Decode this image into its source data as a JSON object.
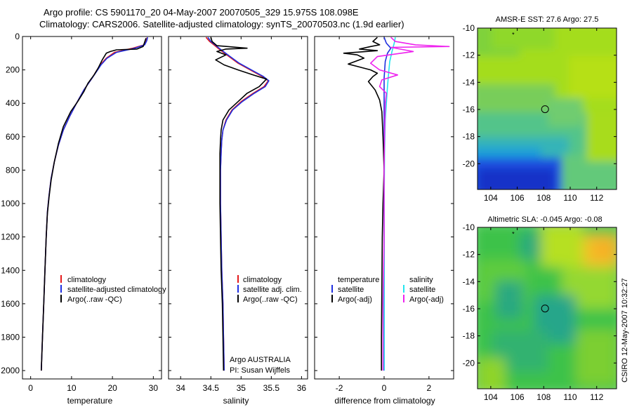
{
  "header": {
    "line1": "Argo profile: CS 5901170_20 04-May-2007 20070505_329 15.975S 108.098E",
    "line2": "Climatology: CARS2006. Satellite-adjusted climatology: synTS_20070503.nc (1.9d earlier)"
  },
  "side_label": "CSIRO 12-May-2007 10:32:27",
  "colors": {
    "climatology": "#e41a1c",
    "satellite": "#1f2fe0",
    "argo": "#000000",
    "salinity_satellite": "#22e5ee",
    "salinity_argo": "#ee22ee"
  },
  "chart_data": [
    {
      "id": "temperature",
      "type": "line",
      "xlabel": "temperature",
      "xlim": [
        -2,
        32
      ],
      "xticks": [
        0,
        10,
        20,
        30
      ],
      "ylim": [
        2050,
        0
      ],
      "yticks": [
        0,
        200,
        400,
        600,
        800,
        1000,
        1200,
        1400,
        1600,
        1800,
        2000
      ],
      "legend": {
        "placement": "lower-right",
        "entries": [
          {
            "label": "climatology",
            "color": "#e41a1c"
          },
          {
            "label": "satellite-adjusted climatology",
            "color": "#1f2fe0"
          },
          {
            "label": "Argo(..raw -QC)",
            "color": "#000000"
          }
        ]
      },
      "series": [
        {
          "name": "climatology",
          "color": "#e41a1c",
          "points": [
            [
              28.5,
              5
            ],
            [
              28.3,
              25
            ],
            [
              27.8,
              50
            ],
            [
              25,
              70
            ],
            [
              20.5,
              95
            ],
            [
              18.5,
              130
            ],
            [
              17,
              170
            ],
            [
              15,
              250
            ],
            [
              13,
              320
            ],
            [
              11.2,
              400
            ],
            [
              9.5,
              480
            ],
            [
              8,
              560
            ],
            [
              6.8,
              650
            ],
            [
              5.8,
              750
            ],
            [
              5,
              850
            ],
            [
              4.5,
              950
            ],
            [
              4.1,
              1050
            ],
            [
              3.8,
              1200
            ],
            [
              3.5,
              1400
            ],
            [
              3.2,
              1600
            ],
            [
              2.9,
              1800
            ],
            [
              2.6,
              2000
            ]
          ]
        },
        {
          "name": "satellite-adjusted climatology",
          "color": "#1f2fe0",
          "points": [
            [
              28.6,
              5
            ],
            [
              28.4,
              25
            ],
            [
              27.9,
              50
            ],
            [
              25.5,
              70
            ],
            [
              21,
              95
            ],
            [
              18.7,
              130
            ],
            [
              17.2,
              170
            ],
            [
              15,
              250
            ],
            [
              13,
              320
            ],
            [
              11.2,
              400
            ],
            [
              9.5,
              480
            ],
            [
              8,
              560
            ],
            [
              6.8,
              650
            ],
            [
              5.8,
              750
            ],
            [
              5,
              850
            ],
            [
              4.5,
              950
            ],
            [
              4.1,
              1050
            ],
            [
              3.8,
              1200
            ],
            [
              3.5,
              1400
            ],
            [
              3.2,
              1600
            ],
            [
              2.9,
              1800
            ],
            [
              2.6,
              2000
            ]
          ]
        },
        {
          "name": "Argo(..raw -QC)",
          "color": "#000000",
          "points": [
            [
              28.2,
              10
            ],
            [
              27.8,
              40
            ],
            [
              27.5,
              60
            ],
            [
              26,
              75
            ],
            [
              21,
              80
            ],
            [
              19.5,
              90
            ],
            [
              18.5,
              100
            ],
            [
              17.5,
              140
            ],
            [
              16.5,
              190
            ],
            [
              15.5,
              230
            ],
            [
              14,
              280
            ],
            [
              13,
              330
            ],
            [
              11.5,
              390
            ],
            [
              9.8,
              450
            ],
            [
              8,
              540
            ],
            [
              6.8,
              640
            ],
            [
              5.8,
              750
            ],
            [
              5,
              860
            ],
            [
              4.5,
              960
            ],
            [
              4.1,
              1060
            ],
            [
              3.8,
              1200
            ],
            [
              3.5,
              1400
            ],
            [
              3.2,
              1600
            ],
            [
              2.9,
              1800
            ],
            [
              2.6,
              2000
            ]
          ]
        }
      ]
    },
    {
      "id": "salinity",
      "type": "line",
      "xlabel": "salinity",
      "xlim": [
        33.8,
        36.1
      ],
      "xticks": [
        34,
        34.5,
        35,
        35.5,
        36
      ],
      "ylim": [
        2050,
        0
      ],
      "legend": {
        "placement": "lower-right",
        "entries": [
          {
            "label": "climatology",
            "color": "#e41a1c"
          },
          {
            "label": "satellite adj. clim.",
            "color": "#1f2fe0"
          },
          {
            "label": "Argo(..raw -QC)",
            "color": "#000000"
          }
        ]
      },
      "annotation": {
        "line1": "Argo AUSTRALIA",
        "line2": "PI: Susan Wijffels"
      },
      "series": [
        {
          "name": "climatology",
          "color": "#e41a1c",
          "points": [
            [
              34.42,
              5
            ],
            [
              34.48,
              30
            ],
            [
              34.55,
              50
            ],
            [
              34.65,
              80
            ],
            [
              34.8,
              120
            ],
            [
              34.95,
              160
            ],
            [
              35.15,
              200
            ],
            [
              35.35,
              240
            ],
            [
              35.45,
              265
            ],
            [
              35.38,
              300
            ],
            [
              35.2,
              340
            ],
            [
              35.0,
              390
            ],
            [
              34.85,
              440
            ],
            [
              34.75,
              500
            ],
            [
              34.7,
              560
            ],
            [
              34.68,
              620
            ],
            [
              34.67,
              700
            ],
            [
              34.66,
              800
            ],
            [
              34.66,
              1000
            ],
            [
              34.67,
              1200
            ],
            [
              34.68,
              1400
            ],
            [
              34.7,
              1600
            ],
            [
              34.71,
              1800
            ],
            [
              34.72,
              2000
            ]
          ]
        },
        {
          "name": "satellite adj. clim.",
          "color": "#1f2fe0",
          "points": [
            [
              34.45,
              5
            ],
            [
              34.5,
              30
            ],
            [
              34.57,
              50
            ],
            [
              34.67,
              80
            ],
            [
              34.82,
              120
            ],
            [
              34.97,
              160
            ],
            [
              35.17,
              200
            ],
            [
              35.37,
              240
            ],
            [
              35.46,
              265
            ],
            [
              35.4,
              300
            ],
            [
              35.22,
              340
            ],
            [
              35.02,
              390
            ],
            [
              34.86,
              440
            ],
            [
              34.76,
              500
            ],
            [
              34.7,
              560
            ],
            [
              34.68,
              620
            ],
            [
              34.67,
              700
            ],
            [
              34.66,
              800
            ],
            [
              34.66,
              1000
            ],
            [
              34.67,
              1200
            ],
            [
              34.68,
              1400
            ],
            [
              34.7,
              1600
            ],
            [
              34.71,
              1800
            ],
            [
              34.72,
              2000
            ]
          ]
        },
        {
          "name": "Argo(..raw -QC)",
          "color": "#000000",
          "points": [
            [
              34.5,
              5
            ],
            [
              34.52,
              30
            ],
            [
              34.6,
              55
            ],
            [
              35.1,
              70
            ],
            [
              34.75,
              75
            ],
            [
              34.6,
              90
            ],
            [
              34.75,
              110
            ],
            [
              34.58,
              140
            ],
            [
              34.72,
              170
            ],
            [
              34.95,
              200
            ],
            [
              35.2,
              230
            ],
            [
              35.42,
              255
            ],
            [
              35.3,
              300
            ],
            [
              35.1,
              340
            ],
            [
              34.95,
              390
            ],
            [
              34.8,
              440
            ],
            [
              34.7,
              500
            ],
            [
              34.67,
              560
            ],
            [
              34.66,
              620
            ],
            [
              34.65,
              700
            ],
            [
              34.65,
              800
            ],
            [
              34.65,
              1000
            ],
            [
              34.66,
              1200
            ],
            [
              34.67,
              1400
            ],
            [
              34.69,
              1600
            ],
            [
              34.7,
              1800
            ],
            [
              34.71,
              2000
            ]
          ]
        }
      ]
    },
    {
      "id": "difference",
      "type": "line",
      "xlabel": "difference from climatology",
      "xlim": [
        -3.1,
        3.1
      ],
      "xticks": [
        -2,
        0,
        2
      ],
      "ylim": [
        2050,
        0
      ],
      "legend": {
        "placement": "lower-right",
        "temperature_heading": "temperature",
        "salinity_heading": "salinity",
        "entries": [
          {
            "label": "satellite",
            "color": "#1f2fe0",
            "group": "temperature"
          },
          {
            "label": "Argo(-adj)",
            "color": "#000000",
            "group": "temperature"
          },
          {
            "label": "satellite",
            "color": "#22e5ee",
            "group": "salinity"
          },
          {
            "label": "Argo(-adj)",
            "color": "#ee22ee",
            "group": "salinity"
          }
        ]
      },
      "series": [
        {
          "name": "temperature satellite",
          "color": "#1f2fe0",
          "points": [
            [
              0,
              5
            ],
            [
              0.1,
              40
            ],
            [
              0.3,
              70
            ],
            [
              0.15,
              100
            ],
            [
              0.05,
              150
            ],
            [
              0,
              250
            ],
            [
              0,
              400
            ],
            [
              0,
              600
            ],
            [
              0,
              1000
            ],
            [
              0,
              1500
            ],
            [
              0,
              2000
            ]
          ]
        },
        {
          "name": "temperature Argo(-adj)",
          "color": "#000000",
          "points": [
            [
              -0.3,
              5
            ],
            [
              -0.5,
              30
            ],
            [
              -0.2,
              50
            ],
            [
              -0.6,
              60
            ],
            [
              -1.1,
              75
            ],
            [
              -0.3,
              85
            ],
            [
              -1.8,
              100
            ],
            [
              -1.2,
              110
            ],
            [
              -0.9,
              130
            ],
            [
              -1.6,
              165
            ],
            [
              -0.6,
              200
            ],
            [
              -0.3,
              220
            ],
            [
              -0.5,
              240
            ],
            [
              -0.7,
              270
            ],
            [
              -0.4,
              320
            ],
            [
              -0.2,
              380
            ],
            [
              -0.1,
              450
            ],
            [
              -0.05,
              600
            ],
            [
              0,
              800
            ],
            [
              -0.05,
              1000
            ],
            [
              -0.08,
              1200
            ],
            [
              -0.1,
              1500
            ],
            [
              -0.12,
              1800
            ],
            [
              -0.12,
              2000
            ]
          ]
        },
        {
          "name": "salinity satellite",
          "color": "#22e5ee",
          "points": [
            [
              0.5,
              5
            ],
            [
              0.45,
              40
            ],
            [
              0.35,
              90
            ],
            [
              0.25,
              150
            ],
            [
              0.2,
              220
            ],
            [
              0.15,
              300
            ],
            [
              0.1,
              400
            ],
            [
              0.05,
              500
            ],
            [
              0.02,
              700
            ],
            [
              0,
              1000
            ],
            [
              0,
              2000
            ]
          ]
        },
        {
          "name": "salinity Argo(-adj)",
          "color": "#ee22ee",
          "points": [
            [
              0.3,
              5
            ],
            [
              0.5,
              30
            ],
            [
              1.4,
              50
            ],
            [
              2.9,
              60
            ],
            [
              0.3,
              65
            ],
            [
              1.3,
              90
            ],
            [
              -0.3,
              120
            ],
            [
              -0.6,
              160
            ],
            [
              -0.2,
              200
            ],
            [
              0.6,
              230
            ],
            [
              -0.1,
              260
            ],
            [
              -0.2,
              300
            ],
            [
              0.1,
              340
            ],
            [
              0.05,
              400
            ],
            [
              0.02,
              600
            ],
            [
              0,
              800
            ],
            [
              0,
              1200
            ],
            [
              -0.05,
              1600
            ],
            [
              -0.05,
              2000
            ]
          ]
        }
      ]
    },
    {
      "id": "sst_map",
      "type": "heatmap",
      "title": "AMSR-E SST: 27.6 Argo: 27.5",
      "xlim": [
        103,
        113.5
      ],
      "xticks": [
        104,
        106,
        108,
        110,
        112
      ],
      "ylim": [
        -21.9,
        -10
      ],
      "yticks": [
        -10,
        -12,
        -14,
        -16,
        -18,
        -20
      ],
      "marker": {
        "lon": 108.1,
        "lat": -15.98
      },
      "star": {
        "lon": 105.7,
        "lat": -10.45
      }
    },
    {
      "id": "sla_map",
      "type": "heatmap",
      "title": "Altimetric SLA: -0.045 Argo: -0.08",
      "xlim": [
        103,
        113.5
      ],
      "xticks": [
        104,
        106,
        108,
        110,
        112
      ],
      "ylim": [
        -21.9,
        -10
      ],
      "yticks": [
        -10,
        -12,
        -14,
        -16,
        -18,
        -20
      ],
      "marker": {
        "lon": 108.1,
        "lat": -15.98
      },
      "star": {
        "lon": 105.7,
        "lat": -10.45
      }
    }
  ]
}
